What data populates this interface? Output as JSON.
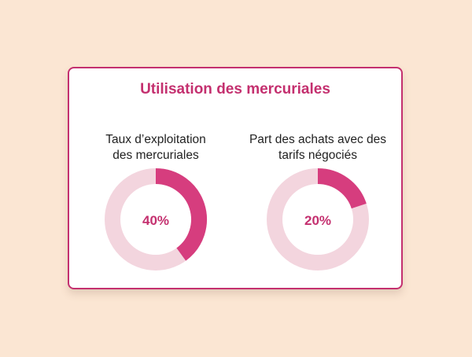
{
  "chart_data": [
    {
      "type": "pie",
      "variant": "donut",
      "title": "Utilisation des mercuriales",
      "label_lines": [
        "Taux d’exploitation",
        "des mercuriales"
      ],
      "value": 40,
      "center_label": "40%"
    },
    {
      "type": "pie",
      "variant": "donut",
      "title": "Utilisation des mercuriales",
      "label_lines": [
        "Part des achats avec des",
        "tarifs négociés"
      ],
      "value": 20,
      "center_label": "20%"
    }
  ],
  "card": {
    "title": "Utilisation des mercuriales"
  },
  "colors": {
    "accent": "#c4306f",
    "filled": "#d63d7e",
    "track": "#f3d5de",
    "background": "#fbe6d3"
  }
}
